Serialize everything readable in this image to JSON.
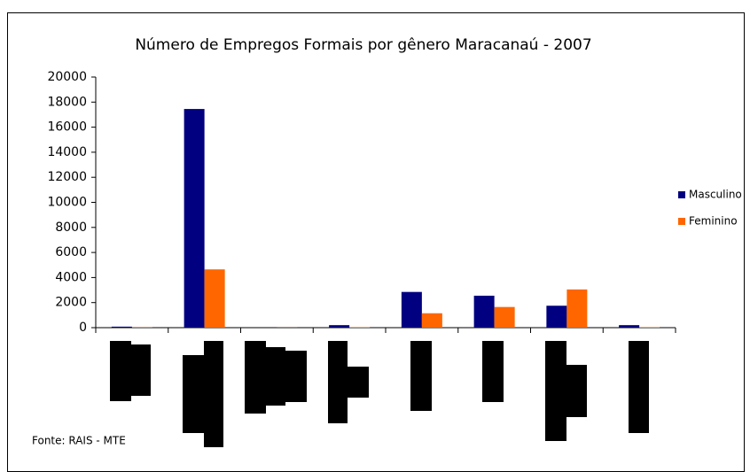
{
  "chart_data": {
    "type": "bar",
    "title": "Número de Empregos Formais por gênero Maracanaú - 2007",
    "categories": [
      null,
      null,
      null,
      null,
      null,
      null,
      null,
      null
    ],
    "series": [
      {
        "name": "Masculino",
        "color": "#000080",
        "values": [
          80,
          17450,
          0,
          200,
          2850,
          2550,
          1750,
          200
        ]
      },
      {
        "name": "Feminino",
        "color": "#ff6600",
        "values": [
          20,
          4650,
          10,
          30,
          1150,
          1650,
          3050,
          30
        ]
      }
    ],
    "ylim": [
      0,
      20000
    ],
    "yticks": [
      0,
      2000,
      4000,
      6000,
      8000,
      10000,
      12000,
      14000,
      16000,
      18000,
      20000
    ],
    "legend": "right",
    "annotation": "Fonte: RAIS - MTE"
  }
}
